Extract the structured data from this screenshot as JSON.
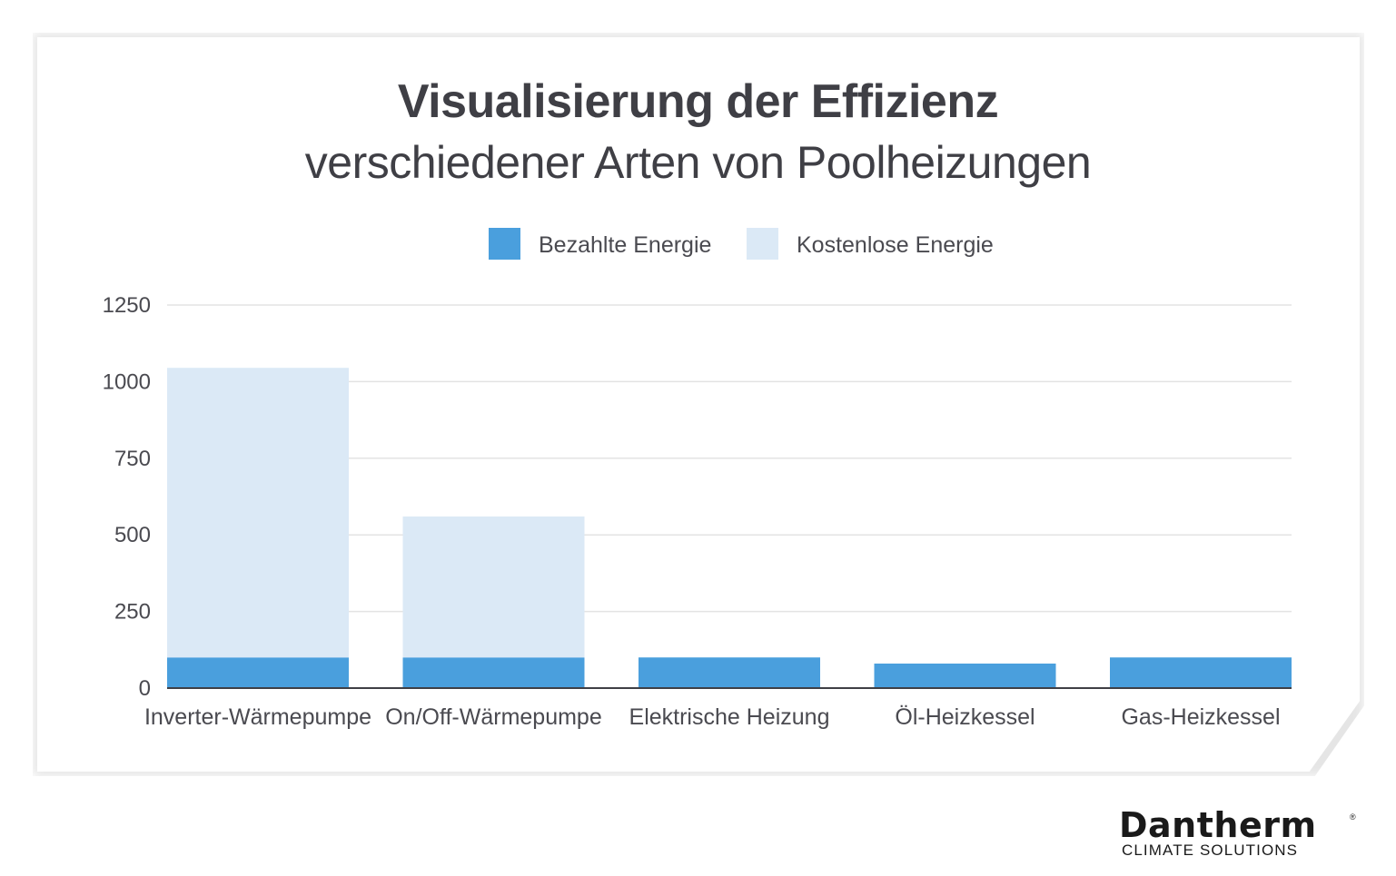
{
  "chart_data": {
    "type": "bar",
    "stacked": true,
    "title": "Visualisierung der Effizienz",
    "subtitle": "verschiedener Arten von Poolheizungen",
    "categories": [
      "Inverter-Wärmepumpe",
      "On/Off-Wärmepumpe",
      "Elektrische Heizung",
      "Öl-Heizkessel",
      "Gas-Heizkessel"
    ],
    "series": [
      {
        "name": "Bezahlte Energie",
        "color": "#4a9fdd",
        "values": [
          100,
          100,
          100,
          80,
          100
        ]
      },
      {
        "name": "Kostenlose Energie",
        "color": "#dbe9f6",
        "values": [
          945,
          460,
          0,
          0,
          0
        ]
      }
    ],
    "yticks": [
      0,
      250,
      500,
      750,
      1000,
      1250
    ],
    "ylim": [
      0,
      1250
    ],
    "grid": true,
    "legend": "top-center"
  },
  "brand": {
    "name": "Dantherm",
    "registered": "®",
    "tagline": "CLIMATE SOLUTIONS"
  }
}
